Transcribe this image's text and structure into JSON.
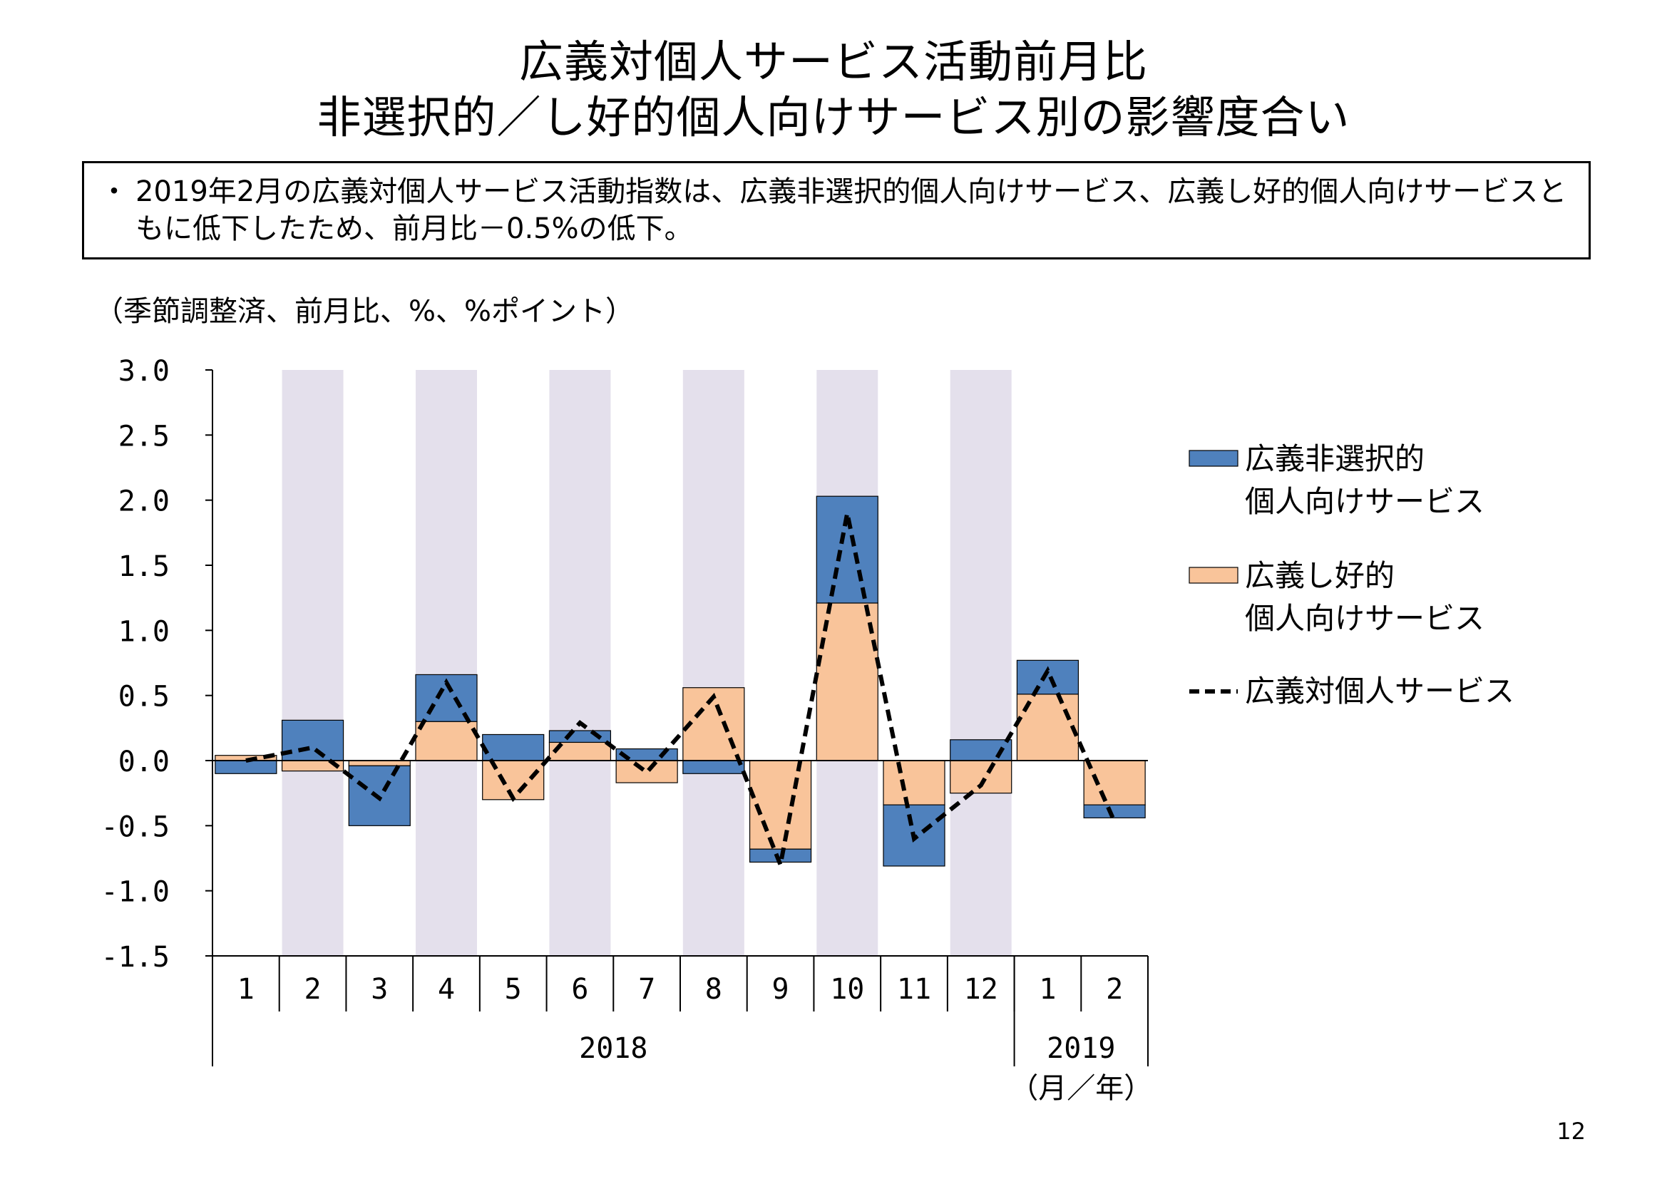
{
  "title_line1": "広義対個人サービス活動前月比",
  "title_line2": "非選択的／し好的個人向けサービス別の影響度合い",
  "summary_bullet": "・",
  "summary_text": "2019年2月の広義対個人サービス活動指数は、広義非選択的個人向けサービス、広義し好的個人向けサービスともに低下したため、前月比－0.5%の低下。",
  "unit_label": "（季節調整済、前月比、%、%ポイント）",
  "page_number": "12",
  "colors": {
    "non_selective": "#4f81bd",
    "discretionary": "#f9c49a",
    "shading": "#e4e0ec",
    "line": "#000000"
  },
  "chart_data": {
    "type": "bar",
    "stacked": true,
    "categories": [
      "1",
      "2",
      "3",
      "4",
      "5",
      "6",
      "7",
      "8",
      "9",
      "10",
      "11",
      "12",
      "1",
      "2"
    ],
    "year_groups": [
      {
        "label": "2018",
        "span": 12
      },
      {
        "label": "2019",
        "span": 2
      }
    ],
    "x_unit_label": "（月／年）",
    "ylim": [
      -1.5,
      3.0
    ],
    "yticks": [
      "3.0",
      "2.5",
      "2.0",
      "1.5",
      "1.0",
      "0.5",
      "0.0",
      "-0.5",
      "-1.0",
      "-1.5"
    ],
    "ytick_values": [
      3.0,
      2.5,
      2.0,
      1.5,
      1.0,
      0.5,
      0.0,
      -0.5,
      -1.0,
      -1.5
    ],
    "shaded_categories": [
      1,
      3,
      5,
      7,
      9,
      11
    ],
    "series": [
      {
        "name": "広義非選択的個人向けサービス",
        "kind": "bar",
        "values": [
          -0.1,
          0.31,
          -0.46,
          0.36,
          0.2,
          0.09,
          0.09,
          -0.1,
          -0.1,
          0.82,
          -0.47,
          0.16,
          0.26,
          -0.1
        ]
      },
      {
        "name": "広義し好的個人向けサービス",
        "kind": "bar",
        "values": [
          0.04,
          -0.08,
          -0.04,
          0.3,
          -0.3,
          0.14,
          -0.17,
          0.56,
          -0.68,
          1.21,
          -0.34,
          -0.25,
          0.51,
          -0.34
        ]
      },
      {
        "name": "広義対個人サービス",
        "kind": "line",
        "style": "dashed",
        "values": [
          0.0,
          0.1,
          -0.29,
          0.6,
          -0.29,
          0.29,
          -0.09,
          0.49,
          -0.8,
          1.9,
          -0.6,
          -0.19,
          0.69,
          -0.47
        ]
      }
    ],
    "legend": [
      {
        "line1": "広義非選択的",
        "line2": "個人向けサービス"
      },
      {
        "line1": "広義し好的",
        "line2": "個人向けサービス"
      },
      {
        "line1": "広義対個人サービス",
        "line2": ""
      }
    ],
    "legend_position": "right"
  }
}
